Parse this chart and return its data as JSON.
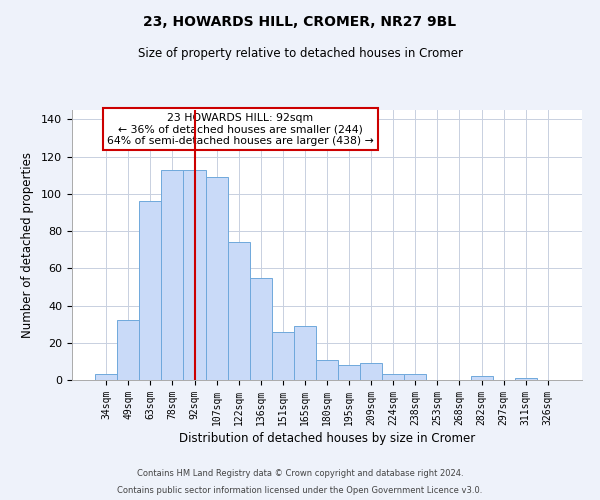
{
  "title": "23, HOWARDS HILL, CROMER, NR27 9BL",
  "subtitle": "Size of property relative to detached houses in Cromer",
  "xlabel": "Distribution of detached houses by size in Cromer",
  "ylabel": "Number of detached properties",
  "categories": [
    "34sqm",
    "49sqm",
    "63sqm",
    "78sqm",
    "92sqm",
    "107sqm",
    "122sqm",
    "136sqm",
    "151sqm",
    "165sqm",
    "180sqm",
    "195sqm",
    "209sqm",
    "224sqm",
    "238sqm",
    "253sqm",
    "268sqm",
    "282sqm",
    "297sqm",
    "311sqm",
    "326sqm"
  ],
  "values": [
    3,
    32,
    96,
    113,
    113,
    109,
    74,
    55,
    26,
    29,
    11,
    8,
    9,
    3,
    3,
    0,
    0,
    2,
    0,
    1,
    0
  ],
  "bar_color": "#c9daf8",
  "bar_edge_color": "#6fa8dc",
  "vline_x_index": 4,
  "vline_color": "#cc0000",
  "ylim": [
    0,
    145
  ],
  "yticks": [
    0,
    20,
    40,
    60,
    80,
    100,
    120,
    140
  ],
  "annotation_title": "23 HOWARDS HILL: 92sqm",
  "annotation_line1": "← 36% of detached houses are smaller (244)",
  "annotation_line2": "64% of semi-detached houses are larger (438) →",
  "annotation_box_color": "#ffffff",
  "annotation_box_edge": "#cc0000",
  "footer1": "Contains HM Land Registry data © Crown copyright and database right 2024.",
  "footer2": "Contains public sector information licensed under the Open Government Licence v3.0.",
  "background_color": "#eef2fa",
  "plot_background": "#ffffff",
  "grid_color": "#c8d0e0"
}
